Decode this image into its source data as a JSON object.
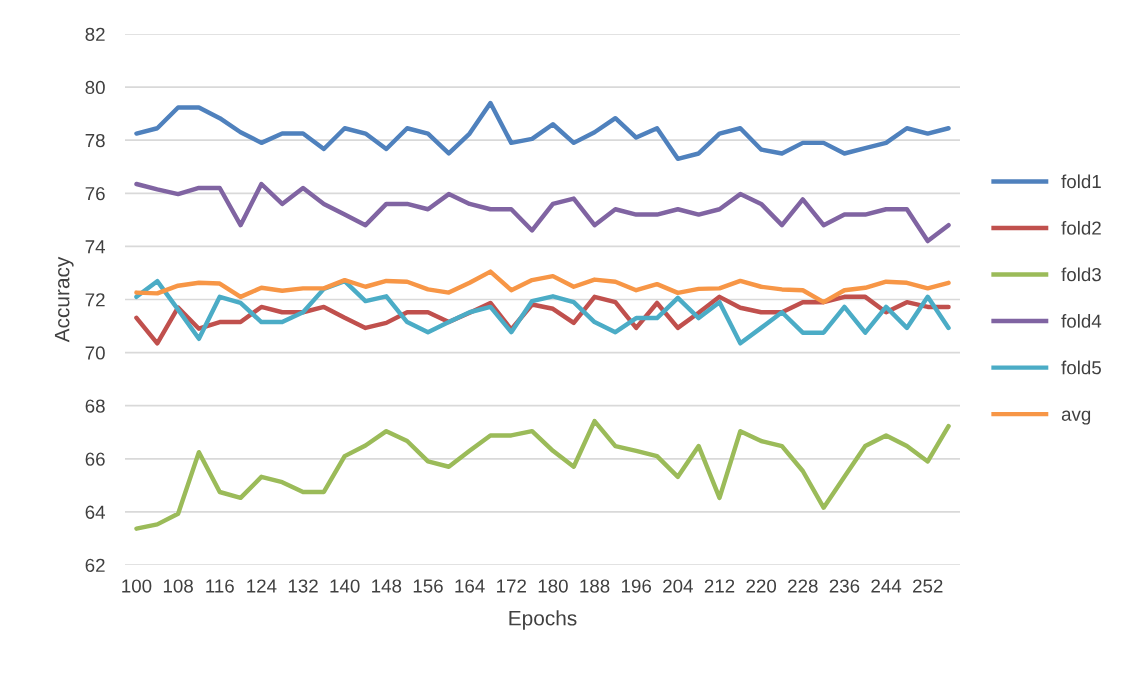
{
  "chart_data": {
    "type": "line",
    "xlabel": "Epochs",
    "ylabel": "Accuracy",
    "categories": [
      "100",
      null,
      "108",
      null,
      "116",
      null,
      "124",
      null,
      "132",
      null,
      "140",
      null,
      "148",
      null,
      "156",
      null,
      "164",
      null,
      "172",
      null,
      "180",
      null,
      "188",
      null,
      "196",
      null,
      "204",
      null,
      "212",
      null,
      "220",
      null,
      "228",
      null,
      "236",
      null,
      "244",
      null,
      "252",
      null
    ],
    "ylim": [
      62,
      82
    ],
    "yticks": [
      62,
      64,
      66,
      68,
      70,
      72,
      74,
      76,
      78,
      80,
      82
    ],
    "grid": "y",
    "legend": "right",
    "marker": "none",
    "line_style": "solid",
    "series": [
      {
        "name": "fold1",
        "color": "#4f81bd",
        "values": [
          78.25,
          78.45,
          79.23,
          79.23,
          78.83,
          78.3,
          77.9,
          78.25,
          78.25,
          77.67,
          78.45,
          78.25,
          77.67,
          78.45,
          78.25,
          77.5,
          78.25,
          79.4,
          77.9,
          78.05,
          78.6,
          77.9,
          78.3,
          78.83,
          78.1,
          78.45,
          77.3,
          77.5,
          78.25,
          78.45,
          77.65,
          77.5,
          77.9,
          77.9,
          77.5,
          77.7,
          77.9,
          78.45,
          78.25,
          78.45
        ]
      },
      {
        "name": "fold2",
        "color": "#c0504d",
        "values": [
          71.31,
          70.35,
          71.7,
          70.9,
          71.15,
          71.15,
          71.72,
          71.52,
          71.52,
          71.72,
          71.31,
          70.93,
          71.12,
          71.52,
          71.52,
          71.15,
          71.5,
          71.87,
          70.87,
          71.81,
          71.65,
          71.12,
          72.1,
          71.9,
          70.93,
          71.87,
          70.93,
          71.5,
          72.1,
          71.69,
          71.52,
          71.52,
          71.9,
          71.9,
          72.1,
          72.1,
          71.52,
          71.9,
          71.72,
          71.72
        ]
      },
      {
        "name": "fold3",
        "color": "#9bbb59",
        "values": [
          63.37,
          63.53,
          63.93,
          66.25,
          64.75,
          64.53,
          65.32,
          65.12,
          64.75,
          64.75,
          66.1,
          66.5,
          67.04,
          66.67,
          65.9,
          65.7,
          66.3,
          66.88,
          66.88,
          67.04,
          66.3,
          65.7,
          67.42,
          66.48,
          66.3,
          66.1,
          65.32,
          66.48,
          64.53,
          67.04,
          66.67,
          66.48,
          65.54,
          64.16,
          65.32,
          66.48,
          66.88,
          66.48,
          65.9,
          67.23
        ]
      },
      {
        "name": "fold4",
        "color": "#8064a2",
        "values": [
          76.35,
          76.15,
          75.97,
          76.2,
          76.2,
          74.8,
          76.35,
          75.6,
          76.2,
          75.6,
          75.2,
          74.8,
          75.6,
          75.6,
          75.4,
          75.97,
          75.6,
          75.4,
          75.4,
          74.6,
          75.6,
          75.8,
          74.8,
          75.4,
          75.2,
          75.2,
          75.4,
          75.2,
          75.4,
          75.97,
          75.6,
          74.8,
          75.77,
          74.8,
          75.2,
          75.2,
          75.4,
          75.4,
          74.2,
          74.8
        ]
      },
      {
        "name": "fold5",
        "color": "#4bacc6",
        "values": [
          72.1,
          72.69,
          71.62,
          70.52,
          72.1,
          71.87,
          71.15,
          71.15,
          71.52,
          72.4,
          72.69,
          71.94,
          72.12,
          71.15,
          70.77,
          71.15,
          71.52,
          71.72,
          70.77,
          71.94,
          72.12,
          71.9,
          71.15,
          70.77,
          71.3,
          71.3,
          72.06,
          71.3,
          71.9,
          70.35,
          70.93,
          71.52,
          70.75,
          70.75,
          71.72,
          70.75,
          71.72,
          70.93,
          72.1,
          70.93
        ]
      },
      {
        "name": "avg",
        "color": "#f79646",
        "values": [
          72.26,
          72.23,
          72.52,
          72.63,
          72.6,
          72.1,
          72.44,
          72.33,
          72.42,
          72.42,
          72.73,
          72.48,
          72.7,
          72.67,
          72.38,
          72.26,
          72.63,
          73.05,
          72.35,
          72.73,
          72.88,
          72.48,
          72.75,
          72.67,
          72.35,
          72.58,
          72.25,
          72.4,
          72.42,
          72.7,
          72.48,
          72.38,
          72.35,
          71.9,
          72.35,
          72.44,
          72.67,
          72.63,
          72.42,
          72.63
        ]
      }
    ]
  }
}
